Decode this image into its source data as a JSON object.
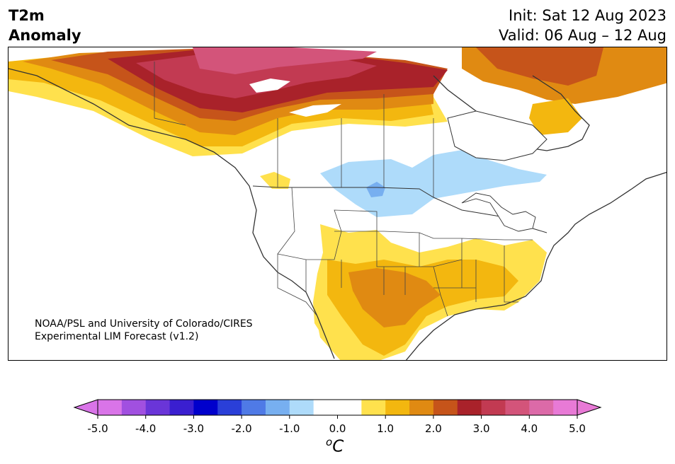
{
  "header": {
    "title_line1": "T2m",
    "title_line2": "Anomaly",
    "init": "Init: Sat 12 Aug 2023",
    "valid": "Valid: 06 Aug – 12 Aug"
  },
  "credit": {
    "line1": "NOAA/PSL and University of Colorado/CIRES",
    "line2": "Experimental LIM Forecast (v1.2)"
  },
  "colorbar": {
    "ticks": [
      "-5.0",
      "-4.0",
      "-3.0",
      "-2.0",
      "-1.0",
      "0.0",
      "1.0",
      "2.0",
      "3.0",
      "4.0",
      "5.0"
    ],
    "unit_prefix": "o",
    "unit_main": "C",
    "colors": [
      "#d974e8",
      "#a150e0",
      "#6a35d8",
      "#3a1fd0",
      "#0000cc",
      "#2a3fd8",
      "#4f7ae6",
      "#77aff0",
      "#aedbfa",
      "#ffffff",
      "#ffffff",
      "#ffe14d",
      "#f3b70f",
      "#e08a12",
      "#c6541a",
      "#a9222a",
      "#c23a52",
      "#d3547a",
      "#dc6aa8",
      "#e87ad6"
    ]
  },
  "legend_colors": {
    "warm1": "#ffe14d",
    "warm2": "#f3b70f",
    "warm3": "#e08a12",
    "warm4": "#c6541a",
    "warm5": "#a9222a",
    "warm6": "#c23a52",
    "warm7": "#d3547a",
    "cool1": "#aedbfa",
    "cool2": "#77aff0"
  }
}
